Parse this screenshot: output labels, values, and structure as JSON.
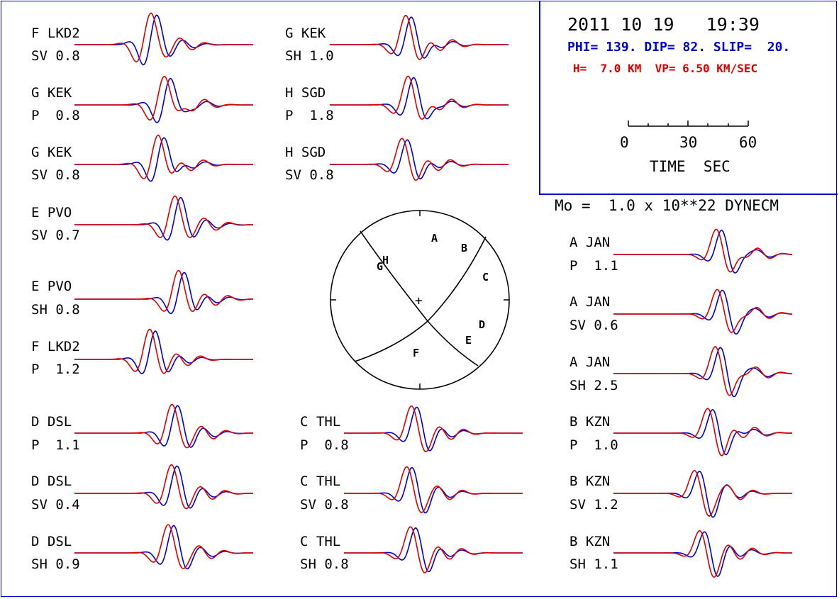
{
  "header": {
    "datetime": "2011 10 19   19:39",
    "mechanism": "PHI= 139. DIP= 82. SLIP=  20.",
    "depth": "H=  7.0 KM  VP= 6.50 KM/SEC",
    "moment": "Mo =  1.0 x 10**22 DYNECM",
    "scale_ticks": [
      "0",
      "30",
      "60"
    ],
    "scale_label": "TIME  SEC"
  },
  "colors": {
    "observed": "#0000cc",
    "synthetic": "#dd0000",
    "frame": "#0000cc",
    "text": "#000000"
  },
  "traces": [
    {
      "id": "t1",
      "station": "F LKD2",
      "phase": "SV",
      "amp": "0.8"
    },
    {
      "id": "t2",
      "station": "G KEK",
      "phase": "P",
      "amp": "0.8"
    },
    {
      "id": "t3",
      "station": "G KEK",
      "phase": "SV",
      "amp": "0.8"
    },
    {
      "id": "t4",
      "station": "E PVO",
      "phase": "SV",
      "amp": "0.7"
    },
    {
      "id": "t5",
      "station": "E PVO",
      "phase": "SH",
      "amp": "0.8"
    },
    {
      "id": "t6",
      "station": "F LKD2",
      "phase": "P",
      "amp": "1.2"
    },
    {
      "id": "t7",
      "station": "D DSL",
      "phase": "P",
      "amp": "1.1"
    },
    {
      "id": "t8",
      "station": "D DSL",
      "phase": "SV",
      "amp": "0.4"
    },
    {
      "id": "t9",
      "station": "D DSL",
      "phase": "SH",
      "amp": "0.9"
    },
    {
      "id": "t10",
      "station": "G KEK",
      "phase": "SH",
      "amp": "1.0"
    },
    {
      "id": "t11",
      "station": "H SGD",
      "phase": "P",
      "amp": "1.8"
    },
    {
      "id": "t12",
      "station": "H SGD",
      "phase": "SV",
      "amp": "0.8"
    },
    {
      "id": "t13",
      "station": "C THL",
      "phase": "P",
      "amp": "0.8"
    },
    {
      "id": "t14",
      "station": "C THL",
      "phase": "SV",
      "amp": "0.8"
    },
    {
      "id": "t15",
      "station": "C THL",
      "phase": "SH",
      "amp": "0.8"
    },
    {
      "id": "t16",
      "station": "A JAN",
      "phase": "P",
      "amp": "1.1"
    },
    {
      "id": "t17",
      "station": "A JAN",
      "phase": "SV",
      "amp": "0.6"
    },
    {
      "id": "t18",
      "station": "A JAN",
      "phase": "SH",
      "amp": "2.5"
    },
    {
      "id": "t19",
      "station": "B KZN",
      "phase": "P",
      "amp": "1.0"
    },
    {
      "id": "t20",
      "station": "B KZN",
      "phase": "SV",
      "amp": "1.2"
    },
    {
      "id": "t21",
      "station": "B KZN",
      "phase": "SH",
      "amp": "1.1"
    }
  ],
  "beachball": {
    "station_labels": [
      "A",
      "B",
      "C",
      "D",
      "E",
      "F",
      "G",
      "H"
    ],
    "center_mark": "+"
  }
}
